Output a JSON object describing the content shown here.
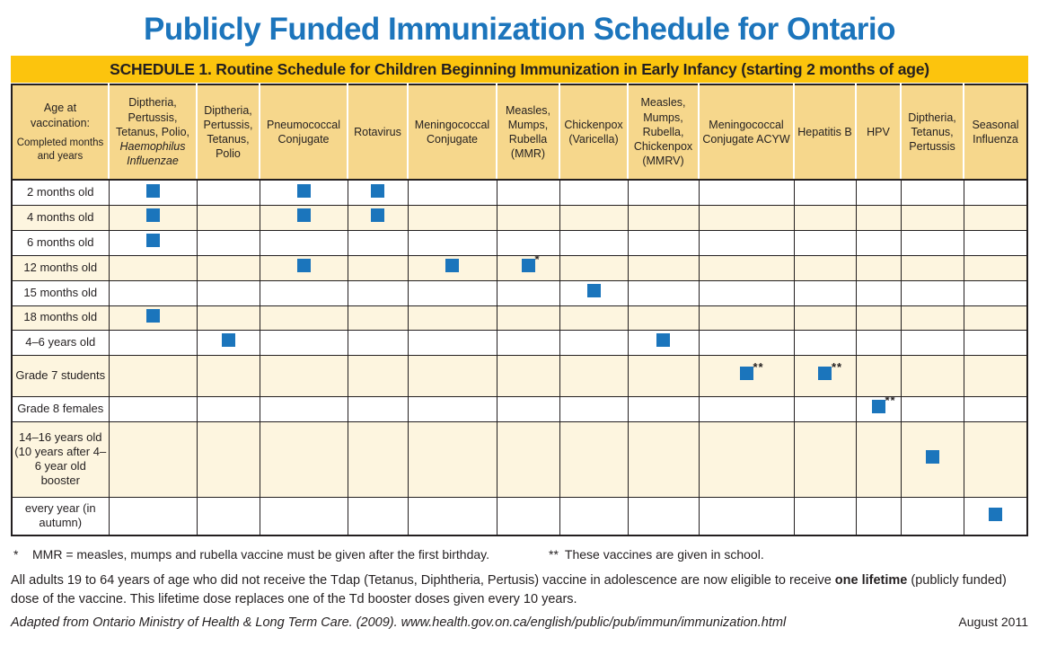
{
  "page": {
    "title": "Publicly Funded Immunization Schedule for Ontario",
    "banner": "SCHEDULE 1.  Routine Schedule for Children Beginning Immunization in Early Infancy (starting 2 months of age)"
  },
  "colors": {
    "title_blue": "#1c75bc",
    "banner_gold": "#fcc40d",
    "header_tan": "#f6d78c",
    "row_cream": "#fdf5df",
    "dose_square_blue": "#1b75bc",
    "grid_line": "#231f20"
  },
  "table": {
    "age_header": {
      "main": "Age at vaccination:",
      "sub": "Completed months and years"
    },
    "vaccine_columns": [
      {
        "text": "Diptheria, Pertussis, Tetanus, Polio,",
        "italic": "Haemophilus Influenzae"
      },
      {
        "text": "Diptheria, Pertussis, Tetanus, Polio"
      },
      {
        "text": "Pneumococcal Conjugate"
      },
      {
        "text": "Rotavirus"
      },
      {
        "text": "Meningococcal Conjugate"
      },
      {
        "text": "Measles, Mumps, Rubella (MMR)"
      },
      {
        "text": "Chickenpox (Varicella)"
      },
      {
        "text": "Measles, Mumps, Rubella, Chickenpox (MMRV)"
      },
      {
        "text": "Meningococcal Conjugate ACYW"
      },
      {
        "text": "Hepatitis B"
      },
      {
        "text": "HPV"
      },
      {
        "text": "Diptheria, Tetanus, Pertussis"
      },
      {
        "text": "Seasonal Influenza"
      }
    ],
    "rows": [
      {
        "label": "2 months old",
        "marks": [
          {
            "col": 0
          },
          {
            "col": 2
          },
          {
            "col": 3
          }
        ]
      },
      {
        "label": "4 months old",
        "marks": [
          {
            "col": 0
          },
          {
            "col": 2
          },
          {
            "col": 3
          }
        ]
      },
      {
        "label": "6 months old",
        "marks": [
          {
            "col": 0
          }
        ]
      },
      {
        "label": "12 months old",
        "marks": [
          {
            "col": 2
          },
          {
            "col": 4
          },
          {
            "col": 5,
            "note": "*"
          }
        ]
      },
      {
        "label": "15 months old",
        "marks": [
          {
            "col": 6
          }
        ]
      },
      {
        "label": "18 months old",
        "marks": [
          {
            "col": 0
          }
        ]
      },
      {
        "label": "4–6 years old",
        "marks": [
          {
            "col": 1
          },
          {
            "col": 7
          }
        ]
      },
      {
        "label": "Grade 7 students",
        "marks": [
          {
            "col": 8,
            "note": "**"
          },
          {
            "col": 9,
            "note": "**"
          }
        ]
      },
      {
        "label": "Grade 8 females",
        "marks": [
          {
            "col": 10,
            "note": "**"
          }
        ]
      },
      {
        "label": "14–16 years old (10 years after 4–6 year old booster",
        "marks": [
          {
            "col": 11
          }
        ]
      },
      {
        "label": "every year (in autumn)",
        "marks": [
          {
            "col": 12
          }
        ]
      }
    ]
  },
  "footnotes": {
    "star_symbol": "*",
    "star_text": "MMR = measles, mumps and rubella vaccine must be given after the first birthday.",
    "double_star_symbol": "**",
    "double_star_text": "These vaccines are given in school.",
    "adult_note_before": "All adults 19 to 64 years of age who did not receive the Tdap (Tetanus, Diphtheria, Pertusis) vaccine in adolescence are now eligible to receive ",
    "adult_note_bold": "one lifetime",
    "adult_note_after": " (publicly funded) dose of the vaccine. This lifetime dose replaces one of the Td booster doses given every 10 years.",
    "source": "Adapted from Ontario Ministry of Health & Long Term Care. (2009). www.health.gov.on.ca/english/public/pub/immun/immunization.html",
    "date": "August 2011"
  }
}
